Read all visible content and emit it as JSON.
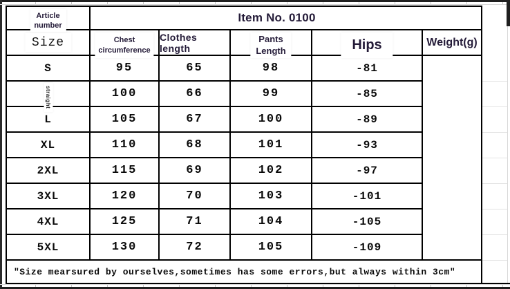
{
  "title": {
    "item_no": "Item No. 0100",
    "article_line1": "Article",
    "article_line2": "number"
  },
  "headers": {
    "size": "Size",
    "chest_line1": "Chest",
    "chest_line2": "circumference",
    "clothes": "Clothes length",
    "pants_line1": "Pants",
    "pants_line2": "Length",
    "hips": "Hips",
    "weight": "Weight(g)"
  },
  "rows": [
    {
      "size": "S",
      "chest": "95",
      "clothes": "65",
      "pants": "98",
      "hips": "-81"
    },
    {
      "size": "straight",
      "chest": "100",
      "clothes": "66",
      "pants": "99",
      "hips": "-85"
    },
    {
      "size": "L",
      "chest": "105",
      "clothes": "67",
      "pants": "100",
      "hips": "-89"
    },
    {
      "size": "XL",
      "chest": "110",
      "clothes": "68",
      "pants": "101",
      "hips": "-93"
    },
    {
      "size": "2XL",
      "chest": "115",
      "clothes": "69",
      "pants": "102",
      "hips": "-97"
    },
    {
      "size": "3XL",
      "chest": "120",
      "clothes": "70",
      "pants": "103",
      "hips": "-101"
    },
    {
      "size": "4XL",
      "chest": "125",
      "clothes": "71",
      "pants": "104",
      "hips": "-105"
    },
    {
      "size": "5XL",
      "chest": "130",
      "clothes": "72",
      "pants": "105",
      "hips": "-109"
    }
  ],
  "weight_column_value": "",
  "note": "″Size mearsured by ourselves,sometimes has some errors,but always within 3cm″",
  "colors": {
    "border": "#000000",
    "heading_text": "#241b38",
    "data_text": "#0a0a0a",
    "frame": "#1f1f1f",
    "gridline": "#d9d9d9"
  }
}
